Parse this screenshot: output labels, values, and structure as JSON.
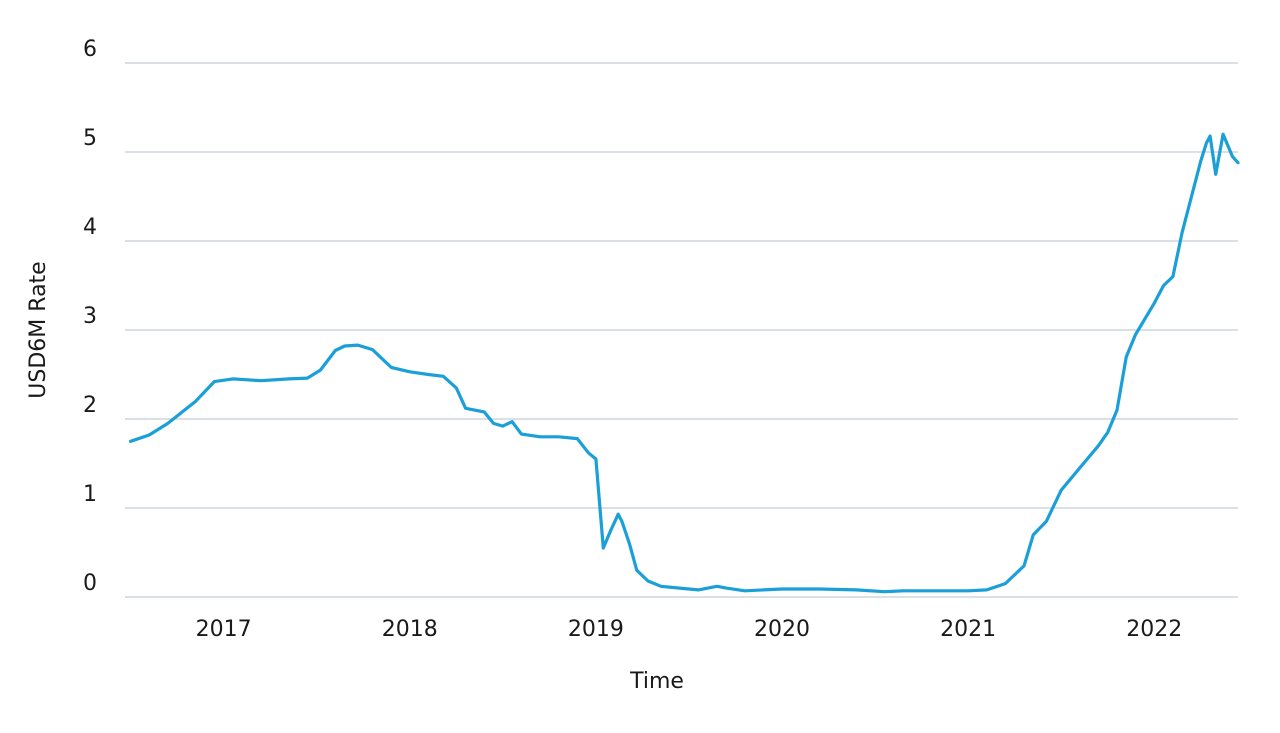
{
  "chart_data": {
    "type": "line",
    "title": "",
    "xlabel": "Time",
    "ylabel": "USD6M Rate",
    "xlim": [
      2016.47,
      2022.45
    ],
    "ylim": [
      0,
      6
    ],
    "y_ticks": [
      "0",
      "1",
      "2",
      "3",
      "4",
      "5",
      "6"
    ],
    "x_ticks": [
      "2017",
      "2018",
      "2019",
      "2020",
      "2021",
      "2022"
    ],
    "grid": "horizontal",
    "legend": "none",
    "series": [
      {
        "color": "#1a9fd9",
        "x": [
          2016.5,
          2016.6,
          2016.7,
          2016.85,
          2016.95,
          2017.05,
          2017.2,
          2017.35,
          2017.45,
          2017.52,
          2017.6,
          2017.65,
          2017.72,
          2017.8,
          2017.9,
          2018.0,
          2018.1,
          2018.18,
          2018.25,
          2018.3,
          2018.4,
          2018.45,
          2018.5,
          2018.55,
          2018.6,
          2018.7,
          2018.8,
          2018.9,
          2018.96,
          2019.0,
          2019.04,
          2019.08,
          2019.12,
          2019.14,
          2019.18,
          2019.22,
          2019.28,
          2019.35,
          2019.45,
          2019.55,
          2019.65,
          2019.7,
          2019.8,
          2019.9,
          2020.0,
          2020.2,
          2020.4,
          2020.55,
          2020.65,
          2020.8,
          2021.0,
          2021.1,
          2021.2,
          2021.3,
          2021.35,
          2021.42,
          2021.5,
          2021.6,
          2021.7,
          2021.75,
          2021.8,
          2021.85,
          2021.9,
          2022.0,
          2022.05,
          2022.1,
          2022.15,
          2022.2,
          2022.25,
          2022.28,
          2022.3,
          2022.33,
          2022.37,
          2022.42,
          2022.45
        ],
        "y": [
          1.75,
          1.82,
          1.95,
          2.2,
          2.42,
          2.45,
          2.43,
          2.45,
          2.46,
          2.55,
          2.77,
          2.82,
          2.83,
          2.78,
          2.58,
          2.53,
          2.5,
          2.48,
          2.35,
          2.12,
          2.08,
          1.95,
          1.92,
          1.97,
          1.83,
          1.8,
          1.8,
          1.78,
          1.62,
          1.55,
          0.55,
          0.75,
          0.93,
          0.85,
          0.6,
          0.3,
          0.18,
          0.12,
          0.1,
          0.08,
          0.12,
          0.1,
          0.07,
          0.08,
          0.09,
          0.09,
          0.08,
          0.06,
          0.07,
          0.07,
          0.07,
          0.08,
          0.15,
          0.35,
          0.7,
          0.85,
          1.2,
          1.45,
          1.7,
          1.85,
          2.1,
          2.7,
          2.95,
          3.3,
          3.5,
          3.6,
          4.1,
          4.5,
          4.9,
          5.1,
          5.18,
          4.75,
          5.2,
          4.95,
          4.88
        ]
      }
    ]
  }
}
